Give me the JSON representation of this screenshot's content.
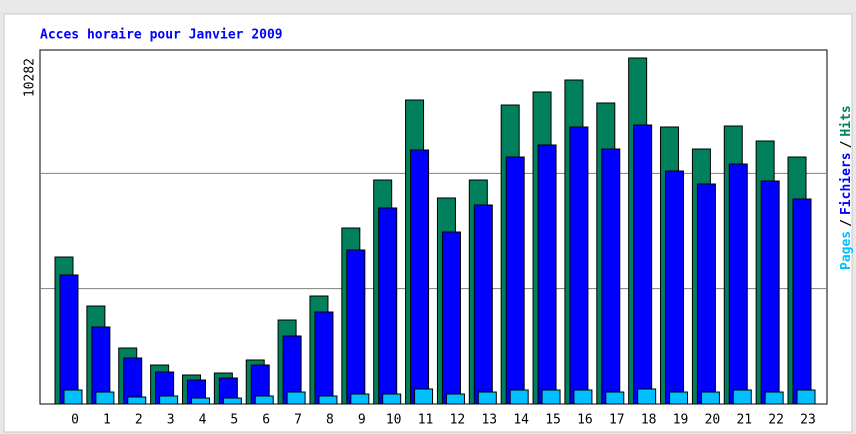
{
  "chart_data": {
    "type": "bar",
    "title": "Acces horaire pour Janvier 2009",
    "categories": [
      "0",
      "1",
      "2",
      "3",
      "4",
      "5",
      "6",
      "7",
      "8",
      "9",
      "10",
      "11",
      "12",
      "13",
      "14",
      "15",
      "16",
      "17",
      "18",
      "19",
      "20",
      "21",
      "22",
      "23"
    ],
    "series": [
      {
        "name": "Hits",
        "color": "#00805c",
        "values": [
          4368,
          2912,
          1664,
          1159,
          862,
          921,
          1308,
          2496,
          3209,
          5230,
          6657,
          9034,
          6122,
          6657,
          8885,
          9272,
          9628,
          8945,
          10282,
          8232,
          7578,
          8261,
          7816,
          7340
        ]
      },
      {
        "name": "Fichiers",
        "color": "#0000ff",
        "values": [
          3834,
          2288,
          1367,
          951,
          713,
          773,
          1159,
          2021,
          2734,
          4576,
          5825,
          7548,
          5111,
          5914,
          7340,
          7697,
          8232,
          7578,
          8291,
          6924,
          6538,
          7132,
          6627,
          6092
        ]
      },
      {
        "name": "Pages",
        "color": "#00c0ff",
        "values": [
          416,
          356,
          208,
          238,
          178,
          178,
          238,
          356,
          238,
          297,
          297,
          446,
          297,
          356,
          416,
          416,
          416,
          356,
          446,
          356,
          356,
          416,
          356,
          416
        ]
      }
    ],
    "legend_separator": "/",
    "ylim": [
      0,
      10282
    ],
    "yticks": [
      10282
    ],
    "grid": true
  }
}
